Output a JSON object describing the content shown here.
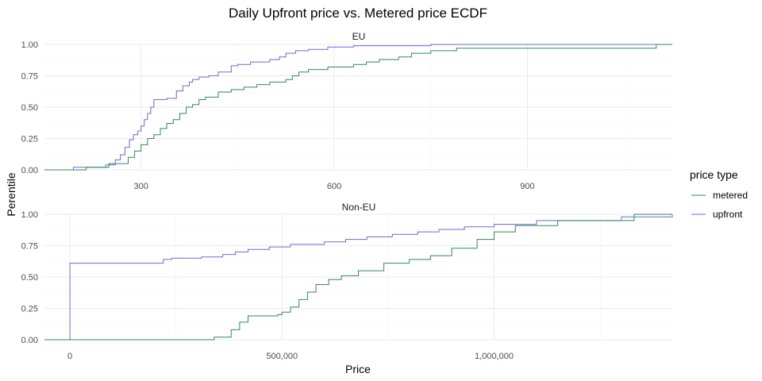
{
  "chart_data": {
    "type": "line",
    "title": "Daily Upfront price vs. Metered price ECDF",
    "xlabel": "Price",
    "ylabel": "Perentile",
    "legend": {
      "title": "price type",
      "position": "right",
      "entries": [
        {
          "name": "metered",
          "color": "#2e8b57"
        },
        {
          "name": "upfront",
          "color": "#6a6ad8"
        }
      ]
    },
    "grid": true,
    "panels": [
      {
        "strip": "EU",
        "xlim": [
          150,
          1125
        ],
        "ylim": [
          0,
          1
        ],
        "xticks": [
          300,
          600,
          900
        ],
        "xtick_labels": [
          "300",
          "600",
          "900"
        ],
        "yticks": [
          0,
          0.25,
          0.5,
          0.75,
          1
        ],
        "ytick_labels": [
          "0.00",
          "0.25",
          "0.50",
          "0.75",
          "1.00"
        ],
        "series": [
          {
            "name": "upfront",
            "color": "#6a6ad8",
            "x": [
              150,
              195,
              245,
              260,
              268,
              275,
              282,
              288,
              295,
              300,
              305,
              310,
              315,
              320,
              340,
              355,
              365,
              375,
              380,
              390,
              405,
              420,
              440,
              450,
              470,
              500,
              515,
              525,
              540,
              560,
              590,
              600,
              630,
              700,
              750,
              1125
            ],
            "y": [
              0,
              0.02,
              0.04,
              0.08,
              0.12,
              0.18,
              0.24,
              0.28,
              0.31,
              0.35,
              0.4,
              0.45,
              0.5,
              0.56,
              0.57,
              0.63,
              0.67,
              0.7,
              0.72,
              0.74,
              0.75,
              0.78,
              0.83,
              0.84,
              0.86,
              0.88,
              0.9,
              0.93,
              0.95,
              0.96,
              0.98,
              0.98,
              0.99,
              0.99,
              1.0,
              1.0
            ]
          },
          {
            "name": "metered",
            "color": "#2e8b57",
            "x": [
              150,
              215,
              250,
              280,
              290,
              300,
              310,
              320,
              330,
              340,
              350,
              360,
              370,
              380,
              390,
              400,
              420,
              440,
              460,
              480,
              500,
              525,
              535,
              545,
              560,
              590,
              630,
              650,
              670,
              700,
              720,
              750,
              790,
              1100,
              1125
            ],
            "y": [
              0,
              0.02,
              0.05,
              0.1,
              0.15,
              0.2,
              0.25,
              0.28,
              0.33,
              0.37,
              0.4,
              0.45,
              0.5,
              0.52,
              0.56,
              0.58,
              0.62,
              0.64,
              0.66,
              0.68,
              0.7,
              0.72,
              0.75,
              0.78,
              0.8,
              0.82,
              0.84,
              0.86,
              0.88,
              0.9,
              0.93,
              0.95,
              0.97,
              1.0,
              1.0
            ]
          }
        ]
      },
      {
        "strip": "Non-EU",
        "xlim": [
          -60000,
          1420000
        ],
        "ylim": [
          0,
          1
        ],
        "xticks": [
          0,
          500000,
          1000000
        ],
        "xtick_labels": [
          "0",
          "500,000",
          "1,000,000"
        ],
        "yticks": [
          0,
          0.25,
          0.5,
          0.75,
          1
        ],
        "ytick_labels": [
          "0.00",
          "0.25",
          "0.50",
          "0.75",
          "1.00"
        ],
        "series": [
          {
            "name": "upfront",
            "color": "#6a6ad8",
            "x": [
              -60000,
              0,
              220000,
              240000,
              310000,
              360000,
              390000,
              420000,
              470000,
              520000,
              600000,
              650000,
              700000,
              760000,
              820000,
              870000,
              930000,
              1000000,
              1100000,
              1300000,
              1420000
            ],
            "y": [
              0,
              0.61,
              0.64,
              0.65,
              0.66,
              0.68,
              0.7,
              0.72,
              0.74,
              0.76,
              0.78,
              0.8,
              0.82,
              0.84,
              0.86,
              0.88,
              0.9,
              0.92,
              0.95,
              0.98,
              1.0
            ]
          },
          {
            "name": "metered",
            "color": "#2e8b57",
            "x": [
              -60000,
              340000,
              380000,
              400000,
              420000,
              490000,
              500000,
              520000,
              540000,
              560000,
              580000,
              610000,
              640000,
              680000,
              740000,
              800000,
              850000,
              900000,
              960000,
              1000000,
              1050000,
              1150000,
              1330000,
              1420000
            ],
            "y": [
              0,
              0.02,
              0.08,
              0.14,
              0.19,
              0.2,
              0.22,
              0.26,
              0.32,
              0.38,
              0.44,
              0.48,
              0.51,
              0.55,
              0.61,
              0.64,
              0.67,
              0.73,
              0.8,
              0.86,
              0.91,
              0.95,
              1.0,
              1.0
            ]
          }
        ]
      }
    ]
  }
}
